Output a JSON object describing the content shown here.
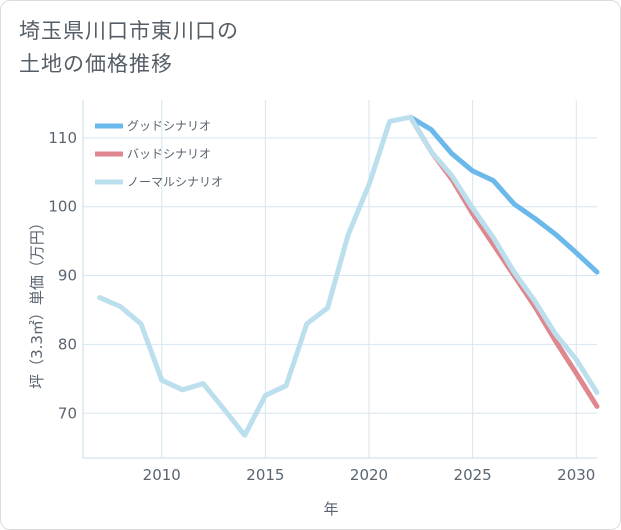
{
  "title_lines": [
    "埼玉県川口市東川口の",
    "土地の価格推移"
  ],
  "chart_data": {
    "type": "line",
    "title": "埼玉県川口市東川口の土地の価格推移",
    "xlabel": "年",
    "ylabel": "坪（3.3㎡）単価（万円）",
    "xlim": [
      2006.2,
      2031
    ],
    "ylim": [
      63.5,
      115.5
    ],
    "x_ticks": [
      2010,
      2015,
      2020,
      2025,
      2030
    ],
    "y_ticks": [
      70,
      80,
      90,
      100,
      110
    ],
    "grid": true,
    "legend_position": "top-left",
    "series": [
      {
        "name": "グッドシナリオ",
        "color": "#6bb8ea",
        "x": [
          2022,
          2023,
          2024,
          2025,
          2026,
          2027,
          2028,
          2029,
          2030,
          2031
        ],
        "y": [
          113.0,
          111.2,
          107.7,
          105.2,
          103.8,
          100.4,
          98.3,
          96.0,
          93.3,
          90.5
        ]
      },
      {
        "name": "バッドシナリオ",
        "color": "#e0868f",
        "x": [
          2022,
          2023,
          2024,
          2025,
          2026,
          2027,
          2028,
          2029,
          2030,
          2031
        ],
        "y": [
          113.0,
          108.0,
          104.0,
          99.0,
          94.5,
          90.0,
          85.5,
          80.5,
          75.8,
          71.0
        ]
      },
      {
        "name": "ノーマルシナリオ",
        "color": "#bcdfee",
        "x": [
          2007,
          2008,
          2009,
          2010,
          2011,
          2012,
          2013,
          2014,
          2015,
          2016,
          2017,
          2018,
          2019,
          2020,
          2021,
          2022,
          2023,
          2024,
          2025,
          2026,
          2027,
          2028,
          2029,
          2030,
          2031
        ],
        "y": [
          86.8,
          85.5,
          83.0,
          74.8,
          73.4,
          74.3,
          70.6,
          66.8,
          72.6,
          74.0,
          83.0,
          85.3,
          96.0,
          103.2,
          112.4,
          113.0,
          108.0,
          104.5,
          99.8,
          95.5,
          90.5,
          86.3,
          81.5,
          77.8,
          73.0
        ]
      }
    ]
  }
}
